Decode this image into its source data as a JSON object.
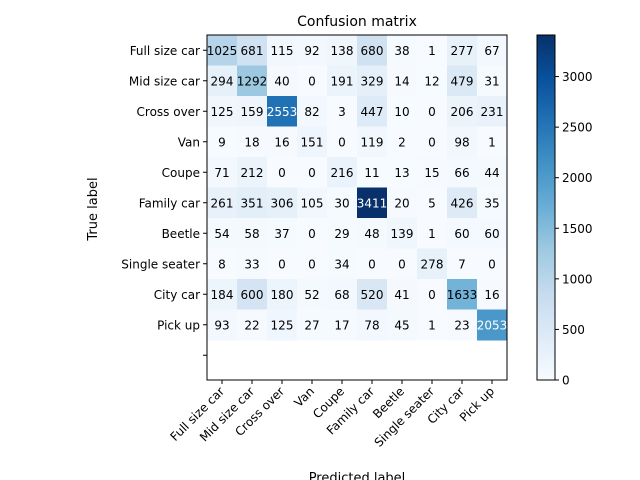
{
  "chart_data": {
    "type": "heatmap",
    "title": "Confusion matrix",
    "xlabel": "Predicted label",
    "ylabel": "True label",
    "x_categories": [
      "Full size car",
      "Mid size car",
      "Cross over",
      "Van",
      "Coupe",
      "Family car",
      "Beetle",
      "Single seater",
      "City car",
      "Pick up"
    ],
    "y_categories": [
      "Full size car",
      "Mid size car",
      "Cross over",
      "Van",
      "Coupe",
      "Family car",
      "Beetle",
      "Single seater",
      "City car",
      "Pick up"
    ],
    "values": [
      [
        1025,
        681,
        115,
        92,
        138,
        680,
        38,
        1,
        277,
        67
      ],
      [
        294,
        1292,
        40,
        0,
        191,
        329,
        14,
        12,
        479,
        31
      ],
      [
        125,
        159,
        2553,
        82,
        3,
        447,
        10,
        0,
        206,
        231
      ],
      [
        9,
        18,
        16,
        151,
        0,
        119,
        2,
        0,
        98,
        1
      ],
      [
        71,
        212,
        0,
        0,
        216,
        11,
        13,
        15,
        66,
        44
      ],
      [
        261,
        351,
        306,
        105,
        30,
        3411,
        20,
        5,
        426,
        35
      ],
      [
        54,
        58,
        37,
        0,
        29,
        48,
        139,
        1,
        60,
        60
      ],
      [
        8,
        33,
        0,
        0,
        34,
        0,
        0,
        278,
        7,
        0
      ],
      [
        184,
        600,
        180,
        52,
        68,
        520,
        41,
        0,
        1633,
        16
      ],
      [
        93,
        22,
        125,
        27,
        17,
        78,
        45,
        1,
        23,
        2053
      ]
    ],
    "colormap": "Blues",
    "vmin": 0,
    "vmax": 3411,
    "colorbar_ticks": [
      0,
      500,
      1000,
      1500,
      2000,
      2500,
      3000
    ]
  }
}
